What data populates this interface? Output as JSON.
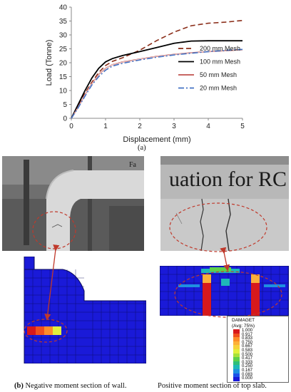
{
  "chart_data": {
    "type": "line",
    "title": "",
    "xlabel": "Displacement (mm)",
    "ylabel": "Load (Tonne)",
    "xlim": [
      0,
      5
    ],
    "ylim": [
      0,
      40
    ],
    "xticks": [
      "0",
      "1",
      "2",
      "3",
      "4",
      "5"
    ],
    "yticks": [
      "0",
      "5",
      "10",
      "15",
      "20",
      "25",
      "30",
      "35",
      "40"
    ],
    "grid": false,
    "legend_position": "right",
    "series": [
      {
        "name": "200 mm Mesh",
        "color": "#8B2E1A",
        "dash": "long-dash",
        "x": [
          0,
          0.2,
          0.4,
          0.6,
          0.8,
          1.0,
          1.2,
          1.5,
          2.0,
          2.5,
          3.0,
          3.5,
          4.0,
          4.5,
          5.0
        ],
        "y": [
          0,
          4.5,
          9,
          13,
          16.5,
          19,
          20.5,
          21.8,
          24.5,
          28,
          31,
          33.3,
          34.2,
          34.6,
          35.2
        ]
      },
      {
        "name": "100 mm Mesh",
        "color": "#000000",
        "dash": "solid",
        "x": [
          0,
          0.2,
          0.4,
          0.6,
          0.8,
          1.0,
          1.2,
          1.5,
          2.0,
          2.5,
          3.0,
          3.5,
          4.0,
          4.5,
          5.0
        ],
        "y": [
          0,
          5,
          10,
          14.5,
          18,
          20.3,
          21.5,
          22.6,
          24,
          25.5,
          27,
          27.8,
          27.9,
          27.9,
          27.9
        ]
      },
      {
        "name": "50 mm Mesh",
        "color": "#C0504D",
        "dash": "solid-double",
        "x": [
          0,
          0.2,
          0.4,
          0.6,
          0.8,
          1.0,
          1.2,
          1.5,
          2.0,
          2.5,
          3.0,
          3.5,
          4.0,
          4.5,
          5.0
        ],
        "y": [
          0,
          4,
          8.5,
          12.5,
          15.8,
          18,
          19.3,
          20.3,
          21.3,
          22.3,
          23,
          23.6,
          24,
          24.3,
          24.7
        ]
      },
      {
        "name": "20 mm Mesh",
        "color": "#4472C4",
        "dash": "dash-dot",
        "x": [
          0,
          0.2,
          0.4,
          0.6,
          0.8,
          1.0,
          1.2,
          1.5,
          2.0,
          2.5,
          3.0,
          3.5,
          4.0,
          4.5,
          5.0
        ],
        "y": [
          0,
          3.8,
          8,
          12,
          15,
          17.3,
          18.8,
          19.8,
          21,
          22,
          22.8,
          23.4,
          24,
          24.4,
          24.8
        ]
      }
    ]
  },
  "captions": {
    "a": "(a)",
    "b_prefix": "(b)",
    "b_text": " Negative moment section of wall.",
    "right": "Positive moment section of top slab."
  },
  "photos": {
    "wall_text": "Fa",
    "slab_text": "uation for RC"
  },
  "damage_legend": {
    "title": "DAMAGET",
    "subtitle": "(Avg: 75%)",
    "levels": [
      {
        "value": "1.000",
        "color": "#d7191c"
      },
      {
        "value": "0.917",
        "color": "#f0501e"
      },
      {
        "value": "0.833",
        "color": "#fd8d2a"
      },
      {
        "value": "0.750",
        "color": "#fdb03a"
      },
      {
        "value": "0.667",
        "color": "#f7d23c"
      },
      {
        "value": "0.583",
        "color": "#e1f03c"
      },
      {
        "value": "0.500",
        "color": "#a6e23a"
      },
      {
        "value": "0.417",
        "color": "#5fd04a"
      },
      {
        "value": "0.333",
        "color": "#2fbf7a"
      },
      {
        "value": "0.250",
        "color": "#1fb8b8"
      },
      {
        "value": "0.167",
        "color": "#1f8fe0"
      },
      {
        "value": "0.083",
        "color": "#1c52e8"
      },
      {
        "value": "0.000",
        "color": "#1a1ad8"
      }
    ]
  }
}
